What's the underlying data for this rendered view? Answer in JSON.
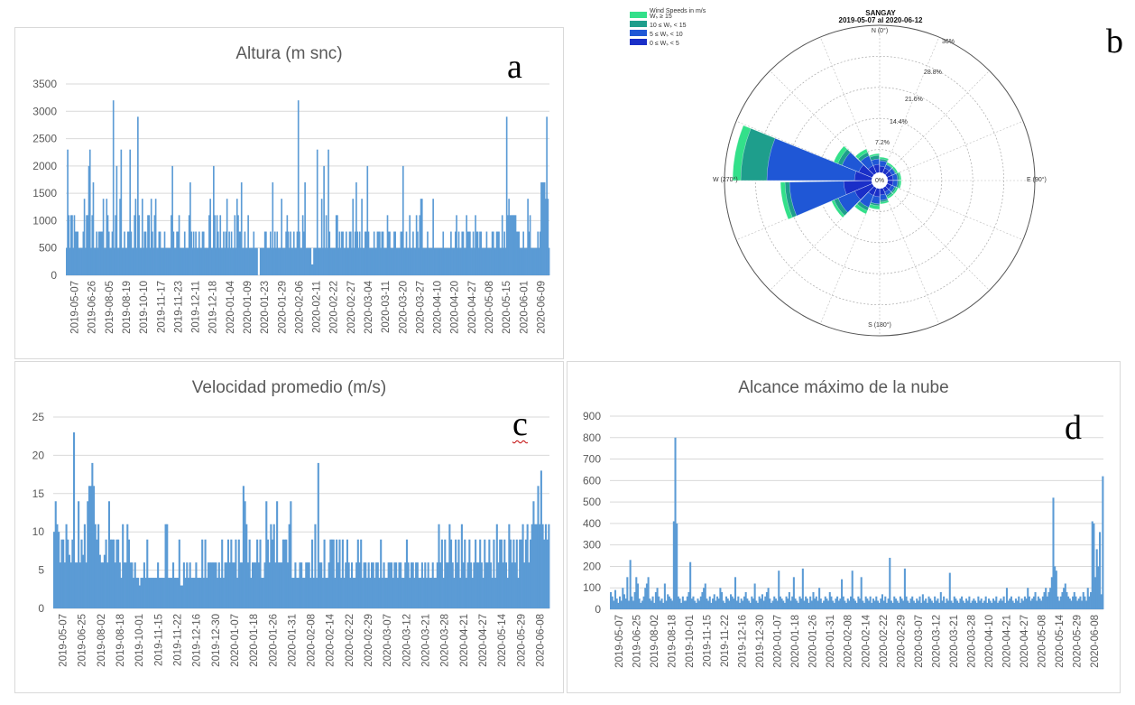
{
  "panel_letters": {
    "a": "a",
    "b": "b",
    "c": "c",
    "d": "d"
  },
  "colors": {
    "bar": "#5b9bd5",
    "grid": "#d9d9d9",
    "axis_text": "#595959",
    "rose_ws15": "#33e08a",
    "rose_ws10_15": "#1e9e8c",
    "rose_ws5_10": "#1f57d6",
    "rose_ws0_5": "#1a2fc8"
  },
  "chart_data": [
    {
      "id": "altura",
      "type": "bar",
      "title": "Altura (m snc)",
      "ylim": [
        0,
        3500
      ],
      "yticks": [
        0,
        500,
        1000,
        1500,
        2000,
        2500,
        3000,
        3500
      ],
      "xticks": [
        "2019-05-07",
        "2019-06-26",
        "2019-08-05",
        "2019-08-19",
        "2019-10-10",
        "2019-11-17",
        "2019-11-23",
        "2019-12-11",
        "2019-12-18",
        "2020-01-04",
        "2020-01-09",
        "2020-01-23",
        "2020-01-29",
        "2020-02-06",
        "2020-02-11",
        "2020-02-22",
        "2020-02-27",
        "2020-03-04",
        "2020-03-11",
        "2020-03-20",
        "2020-03-27",
        "2020-04-10",
        "2020-04-20",
        "2020-04-27",
        "2020-05-08",
        "2020-05-15",
        "2020-06-01",
        "2020-06-09"
      ],
      "grid": true,
      "values": [
        500,
        2300,
        1100,
        500,
        1100,
        1100,
        500,
        1100,
        800,
        800,
        800,
        500,
        500,
        500,
        500,
        800,
        1400,
        500,
        1100,
        1100,
        2000,
        2300,
        500,
        1100,
        1700,
        500,
        500,
        800,
        500,
        800,
        800,
        800,
        800,
        1400,
        500,
        500,
        1400,
        1100,
        800,
        500,
        500,
        800,
        3200,
        500,
        1100,
        2000,
        500,
        500,
        1400,
        2300,
        500,
        500,
        800,
        500,
        500,
        800,
        800,
        2300,
        800,
        500,
        500,
        1100,
        1400,
        500,
        2900,
        1100,
        500,
        500,
        1400,
        500,
        800,
        800,
        500,
        1100,
        1100,
        500,
        1400,
        800,
        500,
        1100,
        1400,
        500,
        500,
        800,
        800,
        500,
        500,
        500,
        800,
        500,
        500,
        500,
        500,
        500,
        1100,
        2000,
        800,
        500,
        500,
        800,
        800,
        1100,
        500,
        500,
        500,
        500,
        800,
        500,
        500,
        500,
        1100,
        1700,
        800,
        500,
        800,
        500,
        800,
        500,
        500,
        800,
        500,
        500,
        800,
        800,
        500,
        500,
        500,
        500,
        1100,
        1400,
        500,
        500,
        2000,
        1100,
        500,
        1100,
        800,
        500,
        1100,
        500,
        500,
        800,
        500,
        800,
        1400,
        500,
        800,
        500,
        800,
        500,
        500,
        1100,
        500,
        1400,
        1100,
        800,
        800,
        1700,
        500,
        500,
        800,
        500,
        500,
        1100,
        500,
        500,
        500,
        500,
        800,
        500,
        500,
        500,
        0,
        0,
        500,
        500,
        500,
        500,
        800,
        800,
        500,
        500,
        500,
        800,
        500,
        1700,
        500,
        800,
        500,
        800,
        500,
        500,
        500,
        1400,
        500,
        500,
        500,
        800,
        1100,
        800,
        500,
        800,
        500,
        500,
        800,
        500,
        500,
        800,
        3200,
        800,
        500,
        500,
        1100,
        800,
        1700,
        500,
        500,
        500,
        500,
        500,
        200,
        200,
        500,
        500,
        500,
        2300,
        500,
        500,
        500,
        1400,
        500,
        2000,
        500,
        1100,
        500,
        2300,
        800,
        500,
        500,
        500,
        500,
        500,
        1100,
        1100,
        500,
        800,
        500,
        800,
        800,
        500,
        500,
        800,
        500,
        500,
        800,
        800,
        500,
        1400,
        500,
        800,
        1700,
        800,
        500,
        800,
        500,
        1400,
        500,
        500,
        800,
        800,
        2000,
        800,
        500,
        500,
        500,
        500,
        800,
        500,
        500,
        800,
        800,
        800,
        500,
        800,
        800,
        500,
        500,
        500,
        1100,
        800,
        800,
        500,
        500,
        500,
        800,
        800,
        500,
        500,
        500,
        500,
        800,
        800,
        2000,
        500,
        500,
        800,
        500,
        500,
        1100,
        500,
        500,
        800,
        500,
        500,
        1100,
        800,
        500,
        1100,
        1400,
        1400,
        500,
        500,
        500,
        500,
        800,
        500,
        500,
        500,
        500,
        1400,
        500,
        500,
        500,
        500,
        500,
        500,
        500,
        500,
        800,
        500,
        500,
        500,
        500,
        500,
        500,
        800,
        500,
        500,
        500,
        800,
        1100,
        500,
        800,
        500,
        500,
        800,
        800,
        500,
        500,
        1100,
        800,
        800,
        800,
        500,
        500,
        800,
        500,
        1100,
        800,
        800,
        500,
        800,
        800,
        500,
        500,
        500,
        500,
        800,
        500,
        500,
        500,
        500,
        800,
        800,
        500,
        500,
        800,
        800,
        800,
        500,
        500,
        1100,
        500,
        800,
        500,
        2900,
        1100,
        1400,
        1100,
        1100,
        1100,
        1100,
        1100,
        1100,
        800,
        800,
        800,
        500,
        500,
        500,
        800,
        500,
        500,
        500,
        1400,
        800,
        1100,
        500,
        500,
        500,
        500,
        500,
        500,
        800,
        500,
        800,
        1700,
        1700,
        1700,
        1700,
        1400,
        2900,
        1400,
        500
      ]
    },
    {
      "id": "velocidad",
      "type": "bar",
      "title": "Velocidad promedio  (m/s)",
      "ylim": [
        0,
        25
      ],
      "yticks": [
        0,
        5,
        10,
        15,
        20,
        25
      ],
      "xticks": [
        "2019-05-07",
        "2019-06-25",
        "2019-08-02",
        "2019-08-18",
        "2019-10-01",
        "2019-11-15",
        "2019-11-22",
        "2019-12-16",
        "2019-12-30",
        "2020-01-07",
        "2020-01-18",
        "2020-01-26",
        "2020-01-31",
        "2020-02-08",
        "2020-02-14",
        "2020-02-22",
        "2020-02-29",
        "2020-03-07",
        "2020-03-12",
        "2020-03-21",
        "2020-03-28",
        "2020-04-21",
        "2020-04-27",
        "2020-05-14",
        "2020-05-29",
        "2020-06-08"
      ],
      "grid": true,
      "values": [
        10,
        14,
        11,
        10,
        6,
        9,
        9,
        6,
        11,
        9,
        7,
        6,
        9,
        23,
        6,
        6,
        14,
        6,
        9,
        7,
        11,
        6,
        14,
        16,
        16,
        19,
        16,
        11,
        9,
        11,
        7,
        6,
        6,
        7,
        9,
        6,
        14,
        9,
        9,
        9,
        6,
        9,
        9,
        6,
        4,
        11,
        6,
        6,
        11,
        9,
        6,
        6,
        4,
        6,
        4,
        4,
        3,
        4,
        4,
        6,
        4,
        9,
        4,
        4,
        4,
        4,
        4,
        4,
        6,
        4,
        4,
        4,
        4,
        11,
        11,
        4,
        4,
        4,
        6,
        4,
        4,
        4,
        9,
        3,
        3,
        6,
        4,
        6,
        4,
        6,
        4,
        4,
        4,
        6,
        4,
        4,
        4,
        9,
        4,
        9,
        4,
        6,
        6,
        6,
        6,
        6,
        6,
        4,
        6,
        4,
        9,
        4,
        6,
        6,
        9,
        6,
        9,
        6,
        6,
        9,
        4,
        9,
        6,
        6,
        16,
        14,
        11,
        6,
        9,
        4,
        6,
        6,
        6,
        9,
        6,
        9,
        4,
        4,
        6,
        14,
        9,
        6,
        11,
        9,
        11,
        6,
        14,
        6,
        6,
        6,
        9,
        9,
        9,
        6,
        11,
        14,
        4,
        4,
        6,
        4,
        4,
        6,
        6,
        4,
        4,
        6,
        6,
        6,
        4,
        9,
        4,
        11,
        4,
        19,
        6,
        6,
        4,
        9,
        4,
        4,
        6,
        9,
        9,
        9,
        4,
        9,
        6,
        9,
        4,
        9,
        4,
        6,
        9,
        6,
        4,
        6,
        4,
        4,
        6,
        9,
        6,
        9,
        4,
        6,
        6,
        4,
        6,
        4,
        6,
        6,
        4,
        6,
        6,
        4,
        9,
        4,
        6,
        4,
        4,
        6,
        6,
        6,
        4,
        6,
        6,
        4,
        6,
        6,
        4,
        4,
        6,
        9,
        6,
        4,
        6,
        6,
        4,
        6,
        6,
        4,
        4,
        6,
        4,
        6,
        4,
        6,
        4,
        4,
        6,
        4,
        4,
        6,
        11,
        6,
        9,
        4,
        9,
        6,
        6,
        11,
        9,
        6,
        4,
        9,
        6,
        9,
        4,
        11,
        6,
        9,
        4,
        6,
        9,
        6,
        4,
        6,
        9,
        6,
        6,
        9,
        6,
        4,
        9,
        6,
        6,
        9,
        6,
        4,
        9,
        4,
        11,
        6,
        9,
        9,
        6,
        9,
        6,
        4,
        11,
        9,
        6,
        9,
        6,
        9,
        4,
        9,
        9,
        11,
        6,
        9,
        11,
        6,
        9,
        11,
        14,
        11,
        11,
        16,
        11,
        18,
        11,
        9,
        11,
        9,
        11
      ]
    },
    {
      "id": "alcance",
      "type": "bar",
      "title": "Alcance máximo de la nube",
      "ylim": [
        0,
        900
      ],
      "yticks": [
        0,
        100,
        200,
        300,
        400,
        500,
        600,
        700,
        800,
        900
      ],
      "xticks": [
        "2019-05-07",
        "2019-06-25",
        "2019-08-02",
        "2019-08-18",
        "2019-10-01",
        "2019-11-15",
        "2019-11-22",
        "2019-12-16",
        "2019-12-30",
        "2020-01-07",
        "2020-01-18",
        "2020-01-26",
        "2020-01-31",
        "2020-02-08",
        "2020-02-14",
        "2020-02-22",
        "2020-02-29",
        "2020-03-07",
        "2020-03-12",
        "2020-03-21",
        "2020-03-28",
        "2020-04-10",
        "2020-04-21",
        "2020-04-27",
        "2020-05-08",
        "2020-05-14",
        "2020-05-29",
        "2020-06-08"
      ],
      "grid": true,
      "values": [
        80,
        60,
        40,
        90,
        50,
        30,
        60,
        40,
        100,
        70,
        50,
        150,
        40,
        230,
        60,
        40,
        80,
        150,
        120,
        50,
        30,
        40,
        60,
        100,
        120,
        150,
        50,
        40,
        60,
        30,
        80,
        100,
        60,
        40,
        50,
        30,
        120,
        40,
        70,
        60,
        50,
        40,
        410,
        800,
        400,
        60,
        50,
        30,
        60,
        40,
        40,
        60,
        80,
        220,
        50,
        60,
        40,
        30,
        50,
        40,
        60,
        80,
        100,
        120,
        50,
        40,
        60,
        30,
        50,
        70,
        40,
        60,
        50,
        100,
        80,
        40,
        30,
        60,
        50,
        40,
        70,
        60,
        50,
        150,
        40,
        60,
        30,
        50,
        40,
        60,
        80,
        50,
        40,
        30,
        60,
        50,
        120,
        40,
        30,
        60,
        50,
        70,
        40,
        60,
        80,
        100,
        50,
        30,
        40,
        60,
        50,
        40,
        180,
        60,
        50,
        40,
        30,
        60,
        50,
        80,
        40,
        60,
        150,
        50,
        40,
        30,
        60,
        50,
        190,
        40,
        60,
        50,
        30,
        60,
        40,
        80,
        50,
        60,
        40,
        100,
        50,
        30,
        40,
        60,
        50,
        40,
        80,
        60,
        40,
        30,
        50,
        60,
        40,
        50,
        140,
        60,
        40,
        30,
        50,
        40,
        60,
        180,
        50,
        40,
        30,
        60,
        50,
        150,
        40,
        30,
        60,
        50,
        40,
        60,
        30,
        50,
        40,
        60,
        40,
        30,
        50,
        70,
        40,
        60,
        30,
        50,
        240,
        40,
        30,
        60,
        50,
        40,
        30,
        60,
        50,
        40,
        190,
        60,
        40,
        30,
        50,
        60,
        40,
        30,
        50,
        40,
        60,
        30,
        70,
        40,
        50,
        30,
        60,
        50,
        40,
        30,
        60,
        40,
        50,
        30,
        80,
        40,
        60,
        30,
        50,
        40,
        170,
        40,
        30,
        60,
        50,
        40,
        30,
        50,
        60,
        40,
        30,
        50,
        40,
        60,
        30,
        40,
        50,
        40,
        30,
        60,
        40,
        50,
        30,
        40,
        60,
        30,
        50,
        40,
        30,
        50,
        40,
        60,
        30,
        40,
        50,
        40,
        60,
        30,
        100,
        40,
        50,
        60,
        40,
        30,
        50,
        40,
        60,
        30,
        50,
        40,
        60,
        50,
        100,
        60,
        40,
        50,
        60,
        80,
        40,
        60,
        50,
        40,
        60,
        80,
        100,
        60,
        80,
        100,
        150,
        520,
        200,
        180,
        60,
        40,
        60,
        80,
        100,
        120,
        80,
        60,
        50,
        40,
        60,
        80,
        60,
        40,
        50,
        60,
        40,
        80,
        60,
        40,
        100,
        60,
        80,
        410,
        400,
        150,
        280,
        200,
        360,
        70,
        620
      ]
    }
  ],
  "windrose": {
    "title": "SANGAY",
    "subtitle": "2019-05-07 al 2020-06-12",
    "legend_title": "Wind Speeds in m/s",
    "legend": [
      "Wₛ ≥ 15",
      "10 ≤ Wₛ < 15",
      "5 ≤ Wₛ < 10",
      "0 ≤ Wₛ < 5"
    ],
    "ring_labels": [
      "7.2%",
      "14.4%",
      "21.6%",
      "28.8%",
      "36%"
    ],
    "compass": {
      "n": "N (0°)",
      "e": "E (90°)",
      "s": "S (180°)",
      "w": "W (270°)"
    },
    "center": "0%"
  }
}
